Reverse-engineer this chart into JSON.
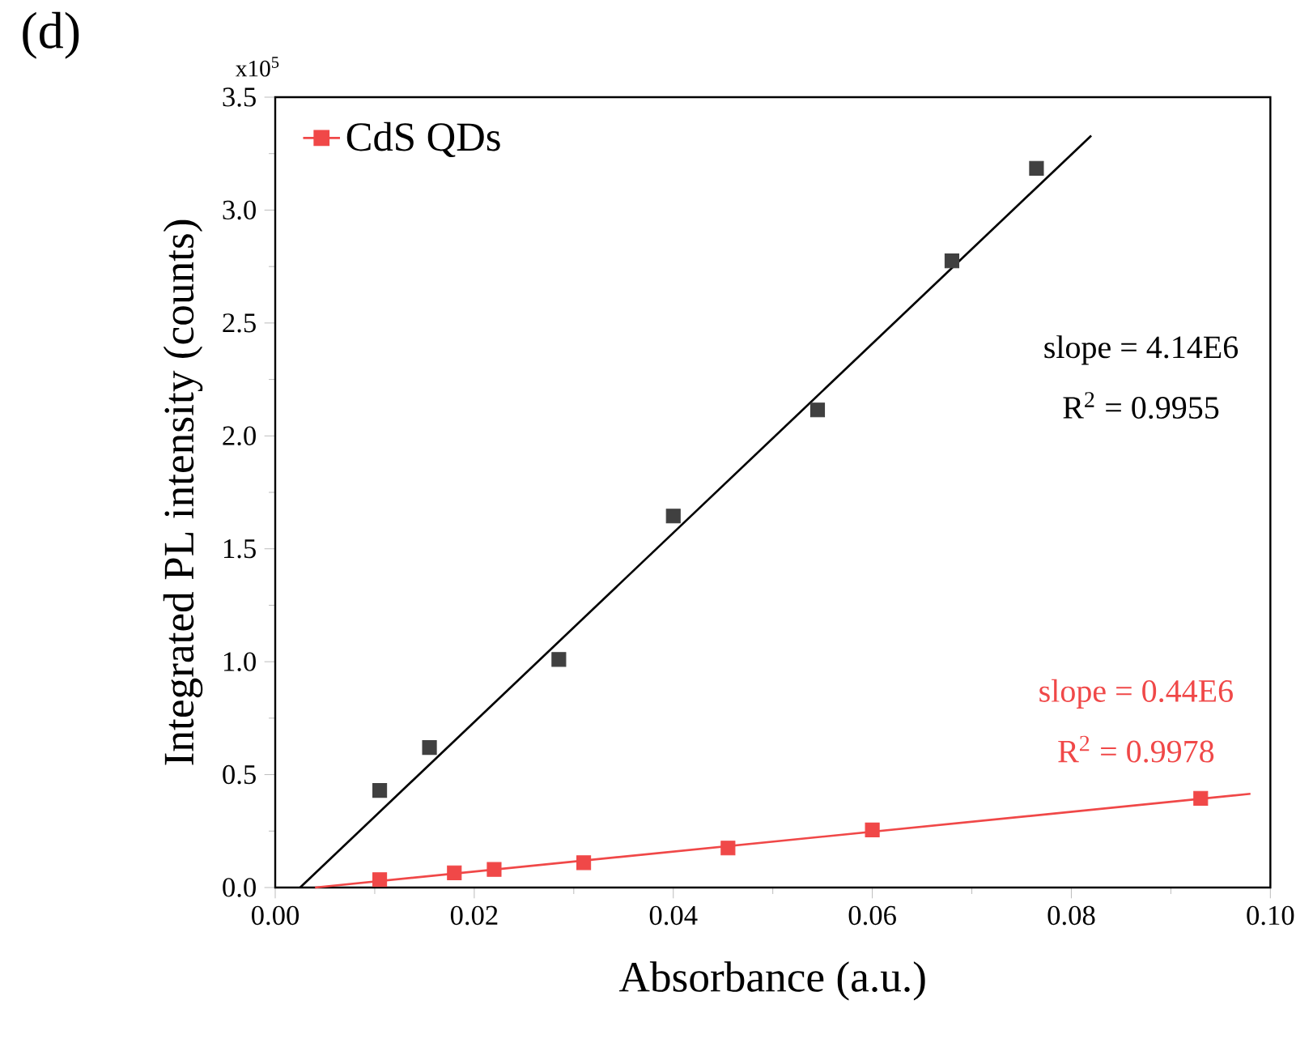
{
  "chart_data": {
    "type": "scatter",
    "title": "(d)",
    "xlabel": "Absorbance (a.u.)",
    "ylabel": "Integrated PL intensity (counts)",
    "annotations": [
      "x10$^{5}$",
      "slope = 4.14E6",
      "R$^{2}$ = 0.9955",
      "slope = 0.44E6",
      "R$^{2}$ = 0.9978"
    ],
    "xlim": [
      0,
      0.1
    ],
    "ylim": [
      0,
      3.5
    ],
    "xticks": [
      {
        "value": 0,
        "label": "0.00"
      },
      {
        "value": 0.02,
        "label": "0.02"
      },
      {
        "value": 0.04,
        "label": "0.04"
      },
      {
        "value": 0.06,
        "label": "0.06"
      },
      {
        "value": 0.08,
        "label": "0.08"
      },
      {
        "value": 0.1,
        "label": "0.10"
      }
    ],
    "yticks": [
      {
        "value": 0,
        "label": "0.0"
      },
      0.5,
      {
        "value": 1,
        "label": "1.0"
      },
      1.5,
      {
        "value": 2,
        "label": "2.0"
      },
      2.5,
      {
        "value": 3,
        "label": "3.0"
      },
      3.5
    ],
    "legend": "top left",
    "marker": "square",
    "series": [
      {
        "color": "#404040",
        "x": [
          0.0105,
          0.0155,
          0.0285,
          0.04,
          0.0545,
          0.068,
          0.0765
        ],
        "values": [
          0.43,
          0.62,
          1.01,
          1.645,
          2.115,
          2.775,
          3.185
        ]
      },
      {
        "type": "line",
        "marker": "none",
        "color": "#000000",
        "x": [
          0.0025,
          0.082
        ],
        "values": [
          0,
          3.33
        ]
      },
      {
        "name": "CdS QDs",
        "color": "#f04848",
        "x": [
          0.0105,
          0.018,
          0.022,
          0.031,
          0.0455,
          0.06,
          0.093
        ],
        "values": [
          0.035,
          0.065,
          0.08,
          0.11,
          0.175,
          0.255,
          0.395
        ]
      },
      {
        "type": "line",
        "marker": "none",
        "color": "#f04848",
        "x": [
          0.004,
          0.098
        ],
        "values": [
          0,
          0.415
        ]
      }
    ]
  }
}
